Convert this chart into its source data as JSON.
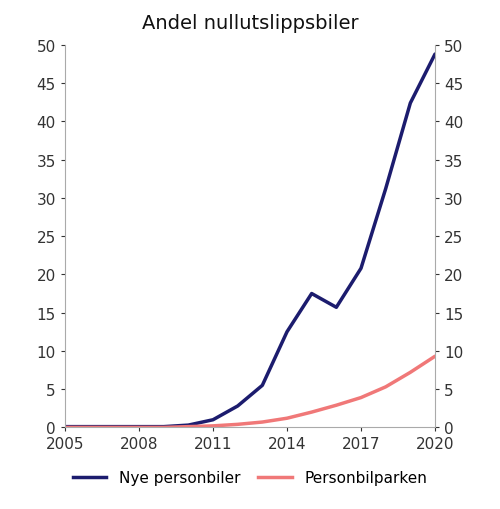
{
  "title": "Andel nullutslippsbiler",
  "years": [
    2005,
    2006,
    2007,
    2008,
    2009,
    2010,
    2011,
    2012,
    2013,
    2014,
    2015,
    2016,
    2017,
    2018,
    2019,
    2020
  ],
  "nye_personbiler": [
    0.1,
    0.1,
    0.1,
    0.1,
    0.1,
    0.3,
    1.0,
    2.8,
    5.5,
    12.5,
    17.5,
    15.7,
    20.8,
    31.2,
    42.4,
    48.8
  ],
  "personbilparken": [
    0.0,
    0.0,
    0.0,
    0.0,
    0.0,
    0.1,
    0.2,
    0.4,
    0.7,
    1.2,
    2.0,
    2.9,
    3.9,
    5.3,
    7.2,
    9.3
  ],
  "color_nye": "#1c1c6e",
  "color_park": "#f07878",
  "ylim": [
    0,
    50
  ],
  "yticks": [
    0,
    5,
    10,
    15,
    20,
    25,
    30,
    35,
    40,
    45,
    50
  ],
  "xticks": [
    2005,
    2008,
    2011,
    2014,
    2017,
    2020
  ],
  "legend_nye": "Nye personbiler",
  "legend_park": "Personbilparken",
  "title_fontsize": 14,
  "tick_fontsize": 11,
  "legend_fontsize": 11,
  "linewidth": 2.5,
  "spine_color": "#aaaaaa",
  "background_color": "#ffffff"
}
